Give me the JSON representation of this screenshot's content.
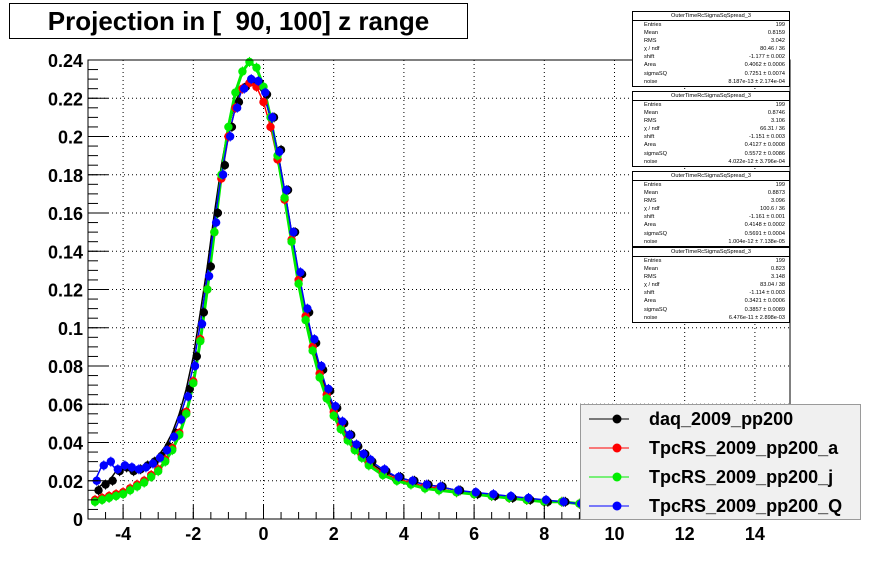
{
  "title": "Projection in [  90, 100] z range",
  "stat_boxes": [
    {
      "name": "OuterTimeRcSigmaSqSpread_3",
      "rows": [
        {
          "label": "Entries",
          "value": "199"
        },
        {
          "label": "Mean",
          "value": "0.8159"
        },
        {
          "label": "RMS",
          "value": "3.042"
        },
        {
          "label": "χ  / ndf",
          "value": "80.46 / 36"
        },
        {
          "label": "shift",
          "value": "-1.177 ± 0.002"
        },
        {
          "label": "Area",
          "value": "0.4062 ± 0.0006"
        },
        {
          "label": "sigmaSQ",
          "value": "0.7251 ± 0.0074"
        },
        {
          "label": "noise",
          "value": "8.187e-13 ± 2.174e-04"
        }
      ]
    },
    {
      "name": "OuterTimeRcSigmaSqSpread_3",
      "rows": [
        {
          "label": "Entries",
          "value": "199"
        },
        {
          "label": "Mean",
          "value": "0.8746"
        },
        {
          "label": "RMS",
          "value": "3.106"
        },
        {
          "label": "χ  / ndf",
          "value": "66.31 / 36"
        },
        {
          "label": "shift",
          "value": "-1.151 ± 0.003"
        },
        {
          "label": "Area",
          "value": "0.4127 ± 0.0008"
        },
        {
          "label": "sigmaSQ",
          "value": "0.5572 ± 0.0086"
        },
        {
          "label": "noise",
          "value": "4.022e-12 ± 3.796e-04"
        }
      ]
    },
    {
      "name": "OuterTimeRcSigmaSqSpread_3",
      "rows": [
        {
          "label": "Entries",
          "value": "199"
        },
        {
          "label": "Mean",
          "value": "0.8873"
        },
        {
          "label": "RMS",
          "value": "3.096"
        },
        {
          "label": "χ  / ndf",
          "value": "100.6 / 36"
        },
        {
          "label": "shift",
          "value": "-1.161 ± 0.001"
        },
        {
          "label": "Area",
          "value": "0.4148 ± 0.0002"
        },
        {
          "label": "sigmaSQ",
          "value": "0.5691 ± 0.0004"
        },
        {
          "label": "noise",
          "value": "1.004e-12 ± 7.138e-05"
        }
      ]
    },
    {
      "name": "OuterTimeRcSigmaSqSpread_3",
      "rows": [
        {
          "label": "Entries",
          "value": "199"
        },
        {
          "label": "Mean",
          "value": "0.823"
        },
        {
          "label": "RMS",
          "value": "3.148"
        },
        {
          "label": "χ  / ndf",
          "value": "83.04 / 38"
        },
        {
          "label": "shift",
          "value": "-1.114 ± 0.003"
        },
        {
          "label": "Area",
          "value": "0.3421 ± 0.0006"
        },
        {
          "label": "sigmaSQ",
          "value": "0.3857 ± 0.0089"
        },
        {
          "label": "noise",
          "value": "6.476e-11 ± 2.898e-03"
        }
      ]
    }
  ],
  "chart_data": {
    "type": "scatter",
    "title": "Projection in [  90, 100] z range",
    "xlabel": "",
    "ylabel": "",
    "xlim": [
      -5,
      15
    ],
    "ylim": [
      0,
      0.24
    ],
    "grid": true,
    "legend_position": "bottom-right",
    "xticks": [
      -4,
      -2,
      0,
      2,
      4,
      6,
      8,
      10,
      12,
      14
    ],
    "yticks": [
      0,
      0.02,
      0.04,
      0.06,
      0.08,
      0.1,
      0.12,
      0.14,
      0.16,
      0.18,
      0.2,
      0.22,
      0.24
    ],
    "series": [
      {
        "name": "daq_2009_pp200",
        "color": "#000000",
        "offset": 0.1,
        "x": [
          -4.8,
          -4.6,
          -4.4,
          -4.2,
          -4,
          -3.8,
          -3.6,
          -3.4,
          -3.2,
          -3,
          -2.8,
          -2.6,
          -2.4,
          -2.2,
          -2,
          -1.8,
          -1.6,
          -1.4,
          -1.2,
          -1,
          -0.8,
          -0.6,
          -0.4,
          -0.2,
          0,
          0.2,
          0.4,
          0.6,
          0.8,
          1,
          1.2,
          1.4,
          1.6,
          1.8,
          2,
          2.2,
          2.4,
          2.6,
          2.8,
          3,
          3.4,
          3.8,
          4.2,
          4.6,
          5,
          5.5,
          6,
          6.5,
          7,
          7.5,
          8,
          8.5,
          9
        ],
        "y": [
          0.015,
          0.018,
          0.02,
          0.025,
          0.027,
          0.025,
          0.026,
          0.028,
          0.03,
          0.033,
          0.038,
          0.045,
          0.055,
          0.068,
          0.085,
          0.108,
          0.132,
          0.16,
          0.185,
          0.205,
          0.218,
          0.226,
          0.229,
          0.228,
          0.222,
          0.21,
          0.193,
          0.172,
          0.15,
          0.128,
          0.108,
          0.092,
          0.078,
          0.067,
          0.058,
          0.05,
          0.044,
          0.038,
          0.034,
          0.03,
          0.025,
          0.022,
          0.02,
          0.018,
          0.017,
          0.015,
          0.013,
          0.012,
          0.011,
          0.01,
          0.009,
          0.009,
          0.008
        ]
      },
      {
        "name": "TpcRS_2009_pp200_a",
        "color": "#ff0000",
        "offset": 0.0,
        "x": [
          -4.8,
          -4.6,
          -4.4,
          -4.2,
          -4,
          -3.8,
          -3.6,
          -3.4,
          -3.2,
          -3,
          -2.8,
          -2.6,
          -2.4,
          -2.2,
          -2,
          -1.8,
          -1.6,
          -1.4,
          -1.2,
          -1,
          -0.8,
          -0.6,
          -0.4,
          -0.2,
          0,
          0.2,
          0.4,
          0.6,
          0.8,
          1,
          1.2,
          1.4,
          1.6,
          1.8,
          2,
          2.2,
          2.4,
          2.6,
          2.8,
          3,
          3.4,
          3.8,
          4.2,
          4.6,
          5,
          5.5,
          6,
          6.5,
          7,
          7.5,
          8,
          8.5,
          9
        ],
        "y": [
          0.01,
          0.011,
          0.012,
          0.013,
          0.014,
          0.016,
          0.018,
          0.02,
          0.023,
          0.026,
          0.031,
          0.037,
          0.045,
          0.056,
          0.072,
          0.094,
          0.12,
          0.15,
          0.178,
          0.2,
          0.215,
          0.225,
          0.228,
          0.226,
          0.218,
          0.205,
          0.188,
          0.167,
          0.146,
          0.125,
          0.106,
          0.09,
          0.076,
          0.065,
          0.056,
          0.049,
          0.042,
          0.037,
          0.033,
          0.029,
          0.024,
          0.021,
          0.019,
          0.017,
          0.016,
          0.014,
          0.013,
          0.012,
          0.011,
          0.01,
          0.009,
          0.009,
          0.008
        ]
      },
      {
        "name": "TpcRS_2009_pp200_j",
        "color": "#00ee00",
        "offset": 0.0,
        "x": [
          -4.8,
          -4.6,
          -4.4,
          -4.2,
          -4,
          -3.8,
          -3.6,
          -3.4,
          -3.2,
          -3,
          -2.8,
          -2.6,
          -2.4,
          -2.2,
          -2,
          -1.8,
          -1.6,
          -1.4,
          -1.2,
          -1,
          -0.8,
          -0.6,
          -0.4,
          -0.2,
          0,
          0.2,
          0.4,
          0.6,
          0.8,
          1,
          1.2,
          1.4,
          1.6,
          1.8,
          2,
          2.2,
          2.4,
          2.6,
          2.8,
          3,
          3.4,
          3.8,
          4.2,
          4.6,
          5,
          5.5,
          6,
          6.5,
          7,
          7.5,
          8,
          8.5,
          9
        ],
        "y": [
          0.009,
          0.01,
          0.011,
          0.012,
          0.013,
          0.015,
          0.017,
          0.019,
          0.022,
          0.025,
          0.03,
          0.036,
          0.044,
          0.055,
          0.071,
          0.093,
          0.12,
          0.15,
          0.18,
          0.205,
          0.223,
          0.234,
          0.239,
          0.236,
          0.226,
          0.21,
          0.19,
          0.168,
          0.145,
          0.123,
          0.104,
          0.088,
          0.074,
          0.063,
          0.054,
          0.047,
          0.041,
          0.036,
          0.032,
          0.028,
          0.023,
          0.02,
          0.018,
          0.016,
          0.015,
          0.014,
          0.013,
          0.012,
          0.011,
          0.01,
          0.009,
          0.009,
          0.008
        ]
      },
      {
        "name": "TpcRS_2009_pp200_Q",
        "color": "#0000ff",
        "offset": 0.05,
        "x": [
          -4.8,
          -4.6,
          -4.4,
          -4.2,
          -4,
          -3.8,
          -3.6,
          -3.4,
          -3.2,
          -3,
          -2.8,
          -2.6,
          -2.4,
          -2.2,
          -2,
          -1.8,
          -1.6,
          -1.4,
          -1.2,
          -1,
          -0.8,
          -0.6,
          -0.4,
          -0.2,
          0,
          0.2,
          0.4,
          0.6,
          0.8,
          1,
          1.2,
          1.4,
          1.6,
          1.8,
          2,
          2.2,
          2.4,
          2.6,
          2.8,
          3,
          3.4,
          3.8,
          4.2,
          4.6,
          5,
          5.5,
          6,
          6.5,
          7,
          7.5,
          8,
          8.5,
          9
        ],
        "y": [
          0.02,
          0.028,
          0.03,
          0.026,
          0.028,
          0.027,
          0.026,
          0.027,
          0.029,
          0.032,
          0.036,
          0.043,
          0.052,
          0.064,
          0.08,
          0.102,
          0.127,
          0.155,
          0.18,
          0.2,
          0.215,
          0.225,
          0.23,
          0.229,
          0.223,
          0.21,
          0.192,
          0.172,
          0.15,
          0.129,
          0.11,
          0.094,
          0.08,
          0.068,
          0.059,
          0.051,
          0.044,
          0.039,
          0.034,
          0.031,
          0.026,
          0.022,
          0.02,
          0.018,
          0.017,
          0.015,
          0.014,
          0.013,
          0.012,
          0.011,
          0.01,
          0.009,
          0.008
        ]
      }
    ]
  }
}
